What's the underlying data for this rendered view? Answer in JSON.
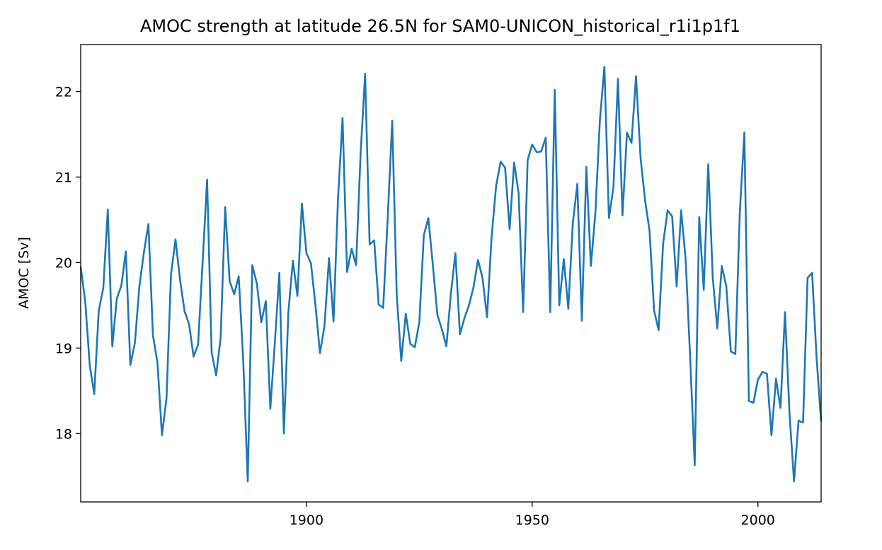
{
  "chart_data": {
    "type": "line",
    "title": "AMOC strength at latitude 26.5N for SAM0-UNICON_historical_r1i1p1f1",
    "xlabel": "",
    "ylabel": "AMOC [Sv]",
    "xlim": [
      1850,
      2014
    ],
    "ylim": [
      17.2,
      22.55
    ],
    "xticks": [
      1900,
      1950,
      2000
    ],
    "yticks": [
      18,
      19,
      20,
      21,
      22
    ],
    "grid": false,
    "color": "#1f77b4",
    "series": [
      {
        "x_start": 1850,
        "x_step": 1,
        "values": [
          19.95,
          19.55,
          18.8,
          18.46,
          19.44,
          19.7,
          20.62,
          19.02,
          19.58,
          19.73,
          20.13,
          18.8,
          19.06,
          19.72,
          20.12,
          20.45,
          19.15,
          18.83,
          17.98,
          18.41,
          19.86,
          20.27,
          19.8,
          19.43,
          19.28,
          18.9,
          19.04,
          20.0,
          20.97,
          18.95,
          18.68,
          19.12,
          20.65,
          19.78,
          19.63,
          19.84,
          18.86,
          17.44,
          19.97,
          19.76,
          19.3,
          19.55,
          18.29,
          19.06,
          19.88,
          18.0,
          19.42,
          20.02,
          19.61,
          20.69,
          20.11,
          19.99,
          19.5,
          18.94,
          19.26,
          20.05,
          19.31,
          20.76,
          21.69,
          19.89,
          20.16,
          19.97,
          21.28,
          22.21,
          20.21,
          20.26,
          19.51,
          19.47,
          20.52,
          21.66,
          19.62,
          18.85,
          19.4,
          19.05,
          19.01,
          19.3,
          20.32,
          20.52,
          19.97,
          19.39,
          19.22,
          19.02,
          19.64,
          20.11,
          19.16,
          19.35,
          19.5,
          19.71,
          20.03,
          19.82,
          19.36,
          20.29,
          20.89,
          21.18,
          21.11,
          20.39,
          21.17,
          20.81,
          19.42,
          21.2,
          21.38,
          21.29,
          21.3,
          21.46,
          19.42,
          22.02,
          19.5,
          20.04,
          19.46,
          20.46,
          20.92,
          19.32,
          21.12,
          19.96,
          20.58,
          21.67,
          22.29,
          20.52,
          20.88,
          22.15,
          20.55,
          21.52,
          21.4,
          22.18,
          21.23,
          20.73,
          20.37,
          19.44,
          19.21,
          20.22,
          20.61,
          20.54,
          19.72,
          20.61,
          20.03,
          18.88,
          17.63,
          20.53,
          19.68,
          21.15,
          19.82,
          19.23,
          19.96,
          19.72,
          18.96,
          18.93,
          20.6,
          21.52,
          18.38,
          18.36,
          18.63,
          18.72,
          18.7,
          17.98,
          18.64,
          18.3,
          19.42,
          18.23,
          17.44,
          18.15,
          18.13,
          19.82,
          19.88,
          18.88,
          18.14
        ]
      }
    ]
  }
}
